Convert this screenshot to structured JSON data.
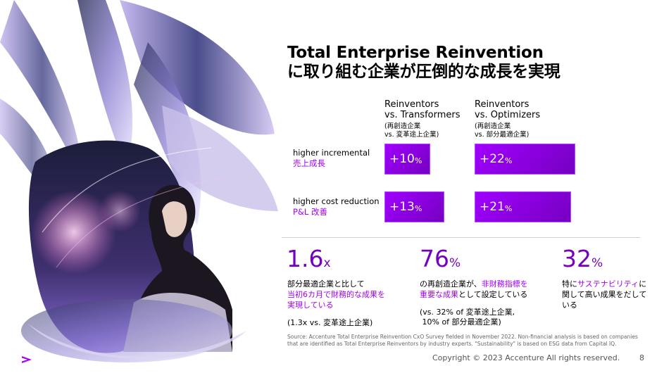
{
  "title": {
    "line1": "Total Enterprise Reinvention",
    "line2": "に取り組む企業が圧倒的な成長を実現"
  },
  "columns": [
    {
      "title_line1": "Reinventors",
      "title_line2": "vs. Transformers",
      "sub_line1": "(再創造企業",
      "sub_line2": "vs. 変革途上企業)"
    },
    {
      "title_line1": "Reinventors",
      "title_line2": "vs. Optimizers",
      "sub_line1": "(再創造企業",
      "sub_line2": "vs. 部分最適企業)"
    }
  ],
  "rows": [
    {
      "label_en": "higher incremental",
      "label_jp": "売上成長"
    },
    {
      "label_en": "higher cost reduction",
      "label_jp": "P&L 改善"
    }
  ],
  "chart_data": {
    "type": "bar",
    "categories": [
      "higher incremental 売上成長",
      "higher cost reduction P&L 改善"
    ],
    "series": [
      {
        "name": "Reinventors vs. Transformers",
        "values": [
          10,
          13
        ]
      },
      {
        "name": "Reinventors vs. Optimizers",
        "values": [
          22,
          21
        ]
      }
    ],
    "value_labels": [
      [
        "+10",
        "+13"
      ],
      [
        "+22",
        "+21"
      ]
    ],
    "unit": "%",
    "color": "#a100ff"
  },
  "stats": [
    {
      "number": "1.6",
      "unit": "x",
      "text_line1": "部分最適企業と比して",
      "text_line2": "当初6カ月で財務的な成果を",
      "text_line3": "実現している",
      "note_line1": "(1.3x vs. 変革途上企業)",
      "note_line2": ""
    },
    {
      "number": "76",
      "unit": "%",
      "text_line1_a": "の再創造企業が、",
      "text_line1_b": "非財務指標を",
      "text_line2_a": "重要な成果",
      "text_line2_b": "として設定している",
      "note_line1": "(vs. 32% of 変革途上企業,",
      "note_line2": " 10% of 部分最適企業)"
    },
    {
      "number": "32",
      "unit": "%",
      "text_line1_a": "特に",
      "text_line1_b": "サステナビリティ",
      "text_line1_c": "に",
      "text_line2": "関して高い成果をだして",
      "text_line3": "いる"
    }
  ],
  "source": {
    "line1": "Source: Accenture Total Enterprise Reinvention CxO Survey fielded in November 2022. Non-financial analysis is based on companies",
    "line2": "that are identified as Total Enterprise Reinventors by industry experts. \"Sustainability\" is based on ESG data from Capital IQ."
  },
  "footer": {
    "copyright": "Copyright © 2023 Accenture  All rights reserved.",
    "page": "8"
  },
  "brand": {
    "accent": "#a100ff",
    "deep": "#7500c0",
    "logo_icon": "accenture-chevron-icon"
  }
}
